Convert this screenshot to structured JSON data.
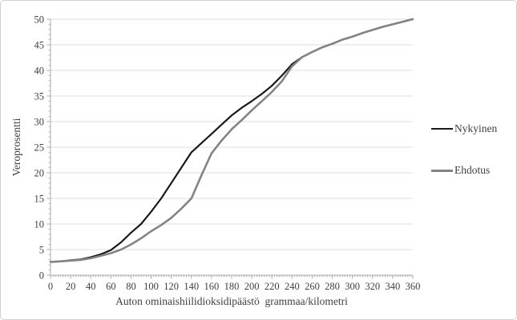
{
  "colors": {
    "background": "#ffffff",
    "frame_border": "#d2d2d2",
    "grid": "#dcdcdc",
    "axis": "#ababab",
    "text": "#3f3f3f",
    "nykyinen_line": "#1a1a1a",
    "ehdotus_line": "#848484"
  },
  "chart_data": {
    "type": "line",
    "title": "",
    "xlabel": "Auton ominaishiilidioksidipäästö  grammaa/kilometri",
    "ylabel": "Veroprosentti",
    "xlim": [
      0,
      360
    ],
    "ylim": [
      0,
      50
    ],
    "grid": "horizontal-only",
    "legend_position": "right-outside",
    "x_ticks": [
      0,
      20,
      40,
      60,
      80,
      100,
      120,
      140,
      160,
      180,
      200,
      220,
      240,
      260,
      280,
      300,
      320,
      340,
      360
    ],
    "y_ticks": [
      0,
      5,
      10,
      15,
      20,
      25,
      30,
      35,
      40,
      45,
      50
    ],
    "x_minor_tick_step": 2.5,
    "y_minor_tick_step": 1,
    "x": [
      0,
      10,
      20,
      30,
      40,
      50,
      60,
      70,
      80,
      90,
      100,
      110,
      120,
      130,
      140,
      150,
      160,
      170,
      180,
      190,
      200,
      210,
      220,
      230,
      240,
      250,
      260,
      270,
      280,
      290,
      300,
      310,
      320,
      330,
      340,
      350,
      360
    ],
    "series": [
      {
        "name": "Nykyinen",
        "color": "#1a1a1a",
        "values": [
          2.6,
          2.7,
          2.9,
          3.1,
          3.5,
          4.1,
          4.9,
          6.4,
          8.3,
          10.0,
          12.4,
          15.0,
          18.0,
          21.0,
          24.0,
          25.8,
          27.6,
          29.4,
          31.2,
          32.7,
          34.0,
          35.4,
          37.0,
          39.0,
          41.2,
          42.6,
          43.6,
          44.5,
          45.2,
          46.0,
          46.6,
          47.3,
          47.9,
          48.5,
          49.0,
          49.5,
          50.0
        ]
      },
      {
        "name": "Ehdotus",
        "color": "#848484",
        "values": [
          2.6,
          2.7,
          2.85,
          3.0,
          3.3,
          3.8,
          4.3,
          5.0,
          6.0,
          7.2,
          8.6,
          9.8,
          11.2,
          13.0,
          15.0,
          19.5,
          23.8,
          26.3,
          28.5,
          30.3,
          32.2,
          34.0,
          35.8,
          37.9,
          40.8,
          42.6,
          43.6,
          44.5,
          45.2,
          46.0,
          46.6,
          47.3,
          47.9,
          48.5,
          49.0,
          49.5,
          50.0
        ]
      }
    ]
  }
}
